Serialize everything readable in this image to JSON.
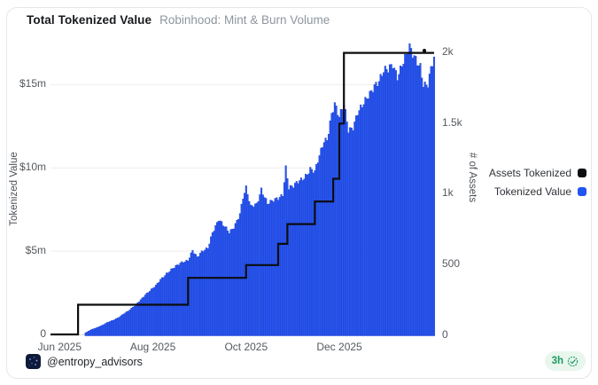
{
  "card": {
    "title": "Total Tokenized Value",
    "subtitle": "Robinhood: Mint & Burn Volume"
  },
  "footer": {
    "handle": "@entropy_advisors",
    "badge_time": "3h"
  },
  "colors": {
    "bar": "#2a57f2",
    "bar_stroke": "#1a41d0",
    "line": "#0c0d0f",
    "grid": "#ededef",
    "baseline": "#d9dbde",
    "badge_bg": "#e8f6ee",
    "badge_text": "#1c9a5e",
    "avatar_bg": "#0e1b38",
    "avatar_dots": "#4a7cff"
  },
  "chart_data": {
    "type": "bar",
    "title": "Total Tokenized Value",
    "subtitle": "Robinhood: Mint & Burn Volume",
    "grid": "horizontal-only",
    "legend_position": "right",
    "x_axis": {
      "labels": [
        "Jun 2025",
        "Aug 2025",
        "Oct 2025",
        "Dec 2025"
      ],
      "label_dates": [
        "2025-06-01",
        "2025-08-01",
        "2025-10-01",
        "2025-12-01"
      ],
      "domain": [
        "2025-05-26",
        "2026-02-01"
      ]
    },
    "left_axis": {
      "title": "Tokenized Value",
      "unit": "USD",
      "max": 17.42,
      "ticks": [
        {
          "label": "0",
          "value": 0
        },
        {
          "label": "$5m",
          "value": 5
        },
        {
          "label": "$10m",
          "value": 10
        },
        {
          "label": "$15m",
          "value": 15
        }
      ]
    },
    "right_axis": {
      "title": "# of Assets",
      "max": 2050,
      "ticks": [
        {
          "label": "0",
          "value": 0
        },
        {
          "label": "500",
          "value": 500
        },
        {
          "label": "1k",
          "value": 1000
        },
        {
          "label": "1.5k",
          "value": 1500
        },
        {
          "label": "2k",
          "value": 2000
        }
      ]
    },
    "legend": [
      {
        "label": "Assets Tokenized",
        "color": "#0c0d0f"
      },
      {
        "label": "Tokenized Value",
        "color": "#2155f2"
      }
    ],
    "bars": {
      "name": "Tokenized Value",
      "unit": "USD millions",
      "frequency": "daily (values linearly interpolated between anchor points read from chart)",
      "anchors": [
        [
          "2025-06-18",
          0.1
        ],
        [
          "2025-06-22",
          0.3
        ],
        [
          "2025-06-25",
          0.4
        ],
        [
          "2025-06-29",
          0.55
        ],
        [
          "2025-07-02",
          0.7
        ],
        [
          "2025-07-06",
          0.85
        ],
        [
          "2025-07-09",
          1.0
        ],
        [
          "2025-07-13",
          1.25
        ],
        [
          "2025-07-16",
          1.4
        ],
        [
          "2025-07-20",
          1.7
        ],
        [
          "2025-07-23",
          2.0
        ],
        [
          "2025-07-27",
          2.4
        ],
        [
          "2025-07-30",
          2.6
        ],
        [
          "2025-08-03",
          2.9
        ],
        [
          "2025-08-06",
          3.3
        ],
        [
          "2025-08-10",
          3.7
        ],
        [
          "2025-08-13",
          3.9
        ],
        [
          "2025-08-17",
          4.1
        ],
        [
          "2025-08-20",
          4.3
        ],
        [
          "2025-08-24",
          4.5
        ],
        [
          "2025-08-27",
          5.1
        ],
        [
          "2025-08-30",
          4.6
        ],
        [
          "2025-09-02",
          4.9
        ],
        [
          "2025-09-06",
          5.2
        ],
        [
          "2025-09-09",
          6.2
        ],
        [
          "2025-09-13",
          6.9
        ],
        [
          "2025-09-16",
          6.5
        ],
        [
          "2025-09-20",
          6.1
        ],
        [
          "2025-09-23",
          6.5
        ],
        [
          "2025-09-27",
          7.3
        ],
        [
          "2025-09-29",
          8.2
        ],
        [
          "2025-10-01",
          8.7
        ],
        [
          "2025-10-04",
          7.6
        ],
        [
          "2025-10-08",
          7.9
        ],
        [
          "2025-10-11",
          8.8
        ],
        [
          "2025-10-15",
          7.8
        ],
        [
          "2025-10-18",
          7.9
        ],
        [
          "2025-10-22",
          8.2
        ],
        [
          "2025-10-25",
          8.5
        ],
        [
          "2025-10-27",
          10.1
        ],
        [
          "2025-10-29",
          8.8
        ],
        [
          "2025-11-01",
          8.8
        ],
        [
          "2025-11-05",
          9.2
        ],
        [
          "2025-11-08",
          9.5
        ],
        [
          "2025-11-12",
          10.0
        ],
        [
          "2025-11-15",
          9.7
        ],
        [
          "2025-11-18",
          10.6
        ],
        [
          "2025-11-21",
          11.6
        ],
        [
          "2025-11-23",
          11.8
        ],
        [
          "2025-11-26",
          13.4
        ],
        [
          "2025-11-28",
          13.9
        ],
        [
          "2025-12-01",
          12.9
        ],
        [
          "2025-12-04",
          13.7
        ],
        [
          "2025-12-07",
          12.3
        ],
        [
          "2025-12-10",
          12.6
        ],
        [
          "2025-12-13",
          13.4
        ],
        [
          "2025-12-16",
          13.6
        ],
        [
          "2025-12-19",
          14.0
        ],
        [
          "2025-12-22",
          14.6
        ],
        [
          "2025-12-24",
          15.1
        ],
        [
          "2025-12-27",
          15.4
        ],
        [
          "2025-12-30",
          15.8
        ],
        [
          "2026-01-02",
          15.7
        ],
        [
          "2026-01-05",
          16.1
        ],
        [
          "2026-01-08",
          15.6
        ],
        [
          "2026-01-11",
          16.4
        ],
        [
          "2026-01-14",
          16.8
        ],
        [
          "2026-01-16",
          17.1
        ],
        [
          "2026-01-18",
          16.6
        ],
        [
          "2026-01-21",
          16.3
        ],
        [
          "2026-01-23",
          16.2
        ],
        [
          "2026-01-25",
          15.2
        ],
        [
          "2026-01-28",
          15.1
        ],
        [
          "2026-01-30",
          15.9
        ],
        [
          "2026-02-01",
          16.4
        ]
      ]
    },
    "line": {
      "name": "Assets Tokenized",
      "style": "step-after",
      "start": [
        "2025-05-26",
        0
      ],
      "steps": [
        [
          "2025-06-13",
          210
        ],
        [
          "2025-08-24",
          400
        ],
        [
          "2025-10-01",
          490
        ],
        [
          "2025-10-22",
          640
        ],
        [
          "2025-10-28",
          780
        ],
        [
          "2025-11-15",
          940
        ],
        [
          "2025-11-27",
          1100
        ],
        [
          "2025-12-01",
          1490
        ],
        [
          "2025-12-04",
          1990
        ]
      ],
      "end": [
        "2026-02-01",
        1990
      ]
    }
  }
}
